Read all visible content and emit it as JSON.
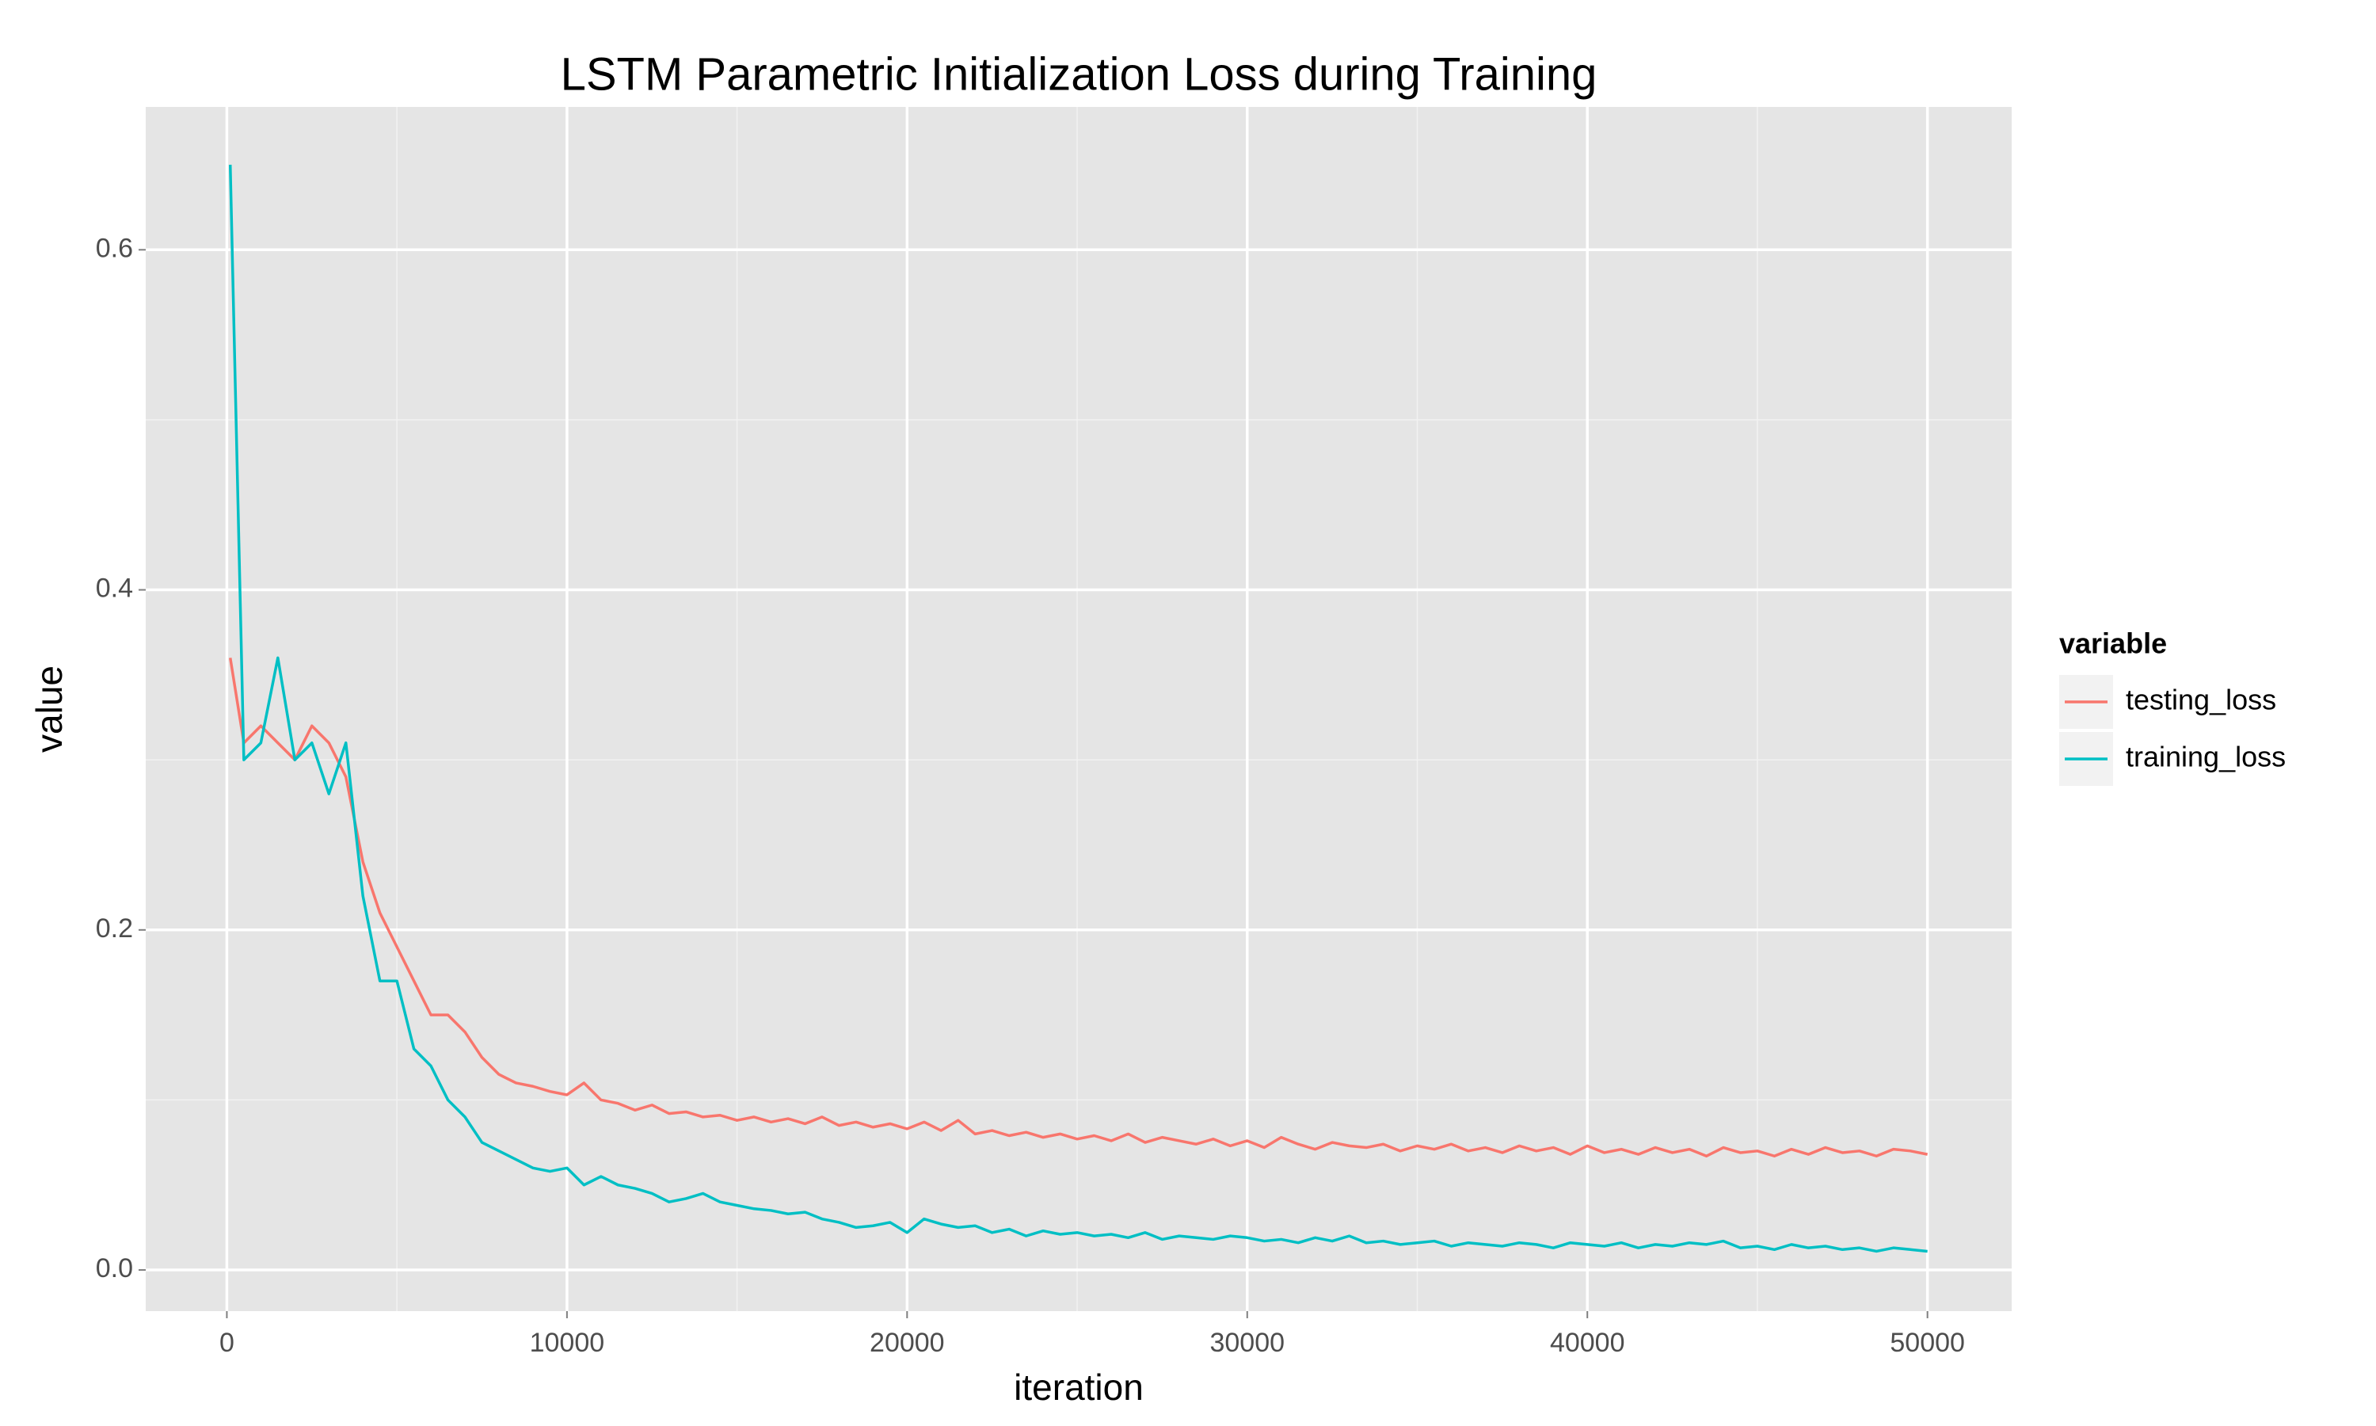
{
  "chart_data": {
    "type": "line",
    "title": "LSTM Parametric Initialization Loss during Training",
    "x_label": "iteration",
    "y_label": "value",
    "legend_title": "variable",
    "legend_position": "right",
    "grid": true,
    "background": "#e5e5e5",
    "xlim": [
      -2385,
      52476
    ],
    "ylim": [
      -0.0242,
      0.684
    ],
    "xticks": [
      0,
      10000,
      20000,
      30000,
      40000,
      50000
    ],
    "yticks": [
      {
        "value": 0,
        "label": "0.0"
      },
      0.2,
      0.4,
      0.6
    ],
    "x_minor_grid": [
      5000,
      15000,
      25000,
      35000,
      45000
    ],
    "y_minor_grid": [
      0.1,
      0.3,
      0.5
    ],
    "x": [
      100,
      500,
      1000,
      1500,
      2000,
      2500,
      3000,
      3500,
      4000,
      4500,
      5000,
      5500,
      6000,
      6500,
      7000,
      7500,
      8000,
      8500,
      9000,
      9500,
      10000,
      10500,
      11000,
      11500,
      12000,
      12500,
      13000,
      13500,
      14000,
      14500,
      15000,
      15500,
      16000,
      16500,
      17000,
      17500,
      18000,
      18500,
      19000,
      19500,
      20000,
      20500,
      21000,
      21500,
      22000,
      22500,
      23000,
      23500,
      24000,
      24500,
      25000,
      25500,
      26000,
      26500,
      27000,
      27500,
      28000,
      28500,
      29000,
      29500,
      30000,
      30500,
      31000,
      31500,
      32000,
      32500,
      33000,
      33500,
      34000,
      34500,
      35000,
      35500,
      36000,
      36500,
      37000,
      37500,
      38000,
      38500,
      39000,
      39500,
      40000,
      40500,
      41000,
      41500,
      42000,
      42500,
      43000,
      43500,
      44000,
      44500,
      45000,
      45500,
      46000,
      46500,
      47000,
      47500,
      48000,
      48500,
      49000,
      49500,
      50000
    ],
    "series": [
      {
        "name": "testing_loss",
        "color": "#f8766d",
        "values": [
          0.36,
          0.31,
          0.32,
          0.31,
          0.3,
          0.32,
          0.31,
          0.29,
          0.24,
          0.21,
          0.19,
          0.17,
          0.15,
          0.15,
          0.14,
          0.125,
          0.115,
          0.11,
          0.108,
          0.105,
          0.103,
          0.11,
          0.1,
          0.098,
          0.094,
          0.097,
          0.092,
          0.093,
          0.09,
          0.091,
          0.088,
          0.09,
          0.087,
          0.089,
          0.086,
          0.09,
          0.085,
          0.087,
          0.084,
          0.086,
          0.083,
          0.087,
          0.082,
          0.088,
          0.08,
          0.082,
          0.079,
          0.081,
          0.078,
          0.08,
          0.077,
          0.079,
          0.076,
          0.08,
          0.075,
          0.078,
          0.076,
          0.074,
          0.077,
          0.073,
          0.076,
          0.072,
          0.078,
          0.074,
          0.071,
          0.075,
          0.073,
          0.072,
          0.074,
          0.07,
          0.073,
          0.071,
          0.074,
          0.07,
          0.072,
          0.069,
          0.073,
          0.07,
          0.072,
          0.068,
          0.073,
          0.069,
          0.071,
          0.068,
          0.072,
          0.069,
          0.071,
          0.067,
          0.072,
          0.069,
          0.07,
          0.067,
          0.071,
          0.068,
          0.072,
          0.069,
          0.07,
          0.067,
          0.071,
          0.07,
          0.068
        ]
      },
      {
        "name": "training_loss",
        "color": "#00bfc4",
        "values": [
          0.65,
          0.3,
          0.31,
          0.36,
          0.3,
          0.31,
          0.28,
          0.31,
          0.22,
          0.17,
          0.17,
          0.13,
          0.12,
          0.1,
          0.09,
          0.075,
          0.07,
          0.065,
          0.06,
          0.058,
          0.06,
          0.05,
          0.055,
          0.05,
          0.048,
          0.045,
          0.04,
          0.042,
          0.045,
          0.04,
          0.038,
          0.036,
          0.035,
          0.033,
          0.034,
          0.03,
          0.028,
          0.025,
          0.026,
          0.028,
          0.022,
          0.03,
          0.027,
          0.025,
          0.026,
          0.022,
          0.024,
          0.02,
          0.023,
          0.021,
          0.022,
          0.02,
          0.021,
          0.019,
          0.022,
          0.018,
          0.02,
          0.019,
          0.018,
          0.02,
          0.019,
          0.017,
          0.018,
          0.016,
          0.019,
          0.017,
          0.02,
          0.016,
          0.017,
          0.015,
          0.016,
          0.017,
          0.014,
          0.016,
          0.015,
          0.014,
          0.016,
          0.015,
          0.013,
          0.016,
          0.015,
          0.014,
          0.016,
          0.013,
          0.015,
          0.014,
          0.016,
          0.015,
          0.017,
          0.013,
          0.014,
          0.012,
          0.015,
          0.013,
          0.014,
          0.012,
          0.013,
          0.011,
          0.013,
          0.012,
          0.011
        ]
      }
    ]
  }
}
